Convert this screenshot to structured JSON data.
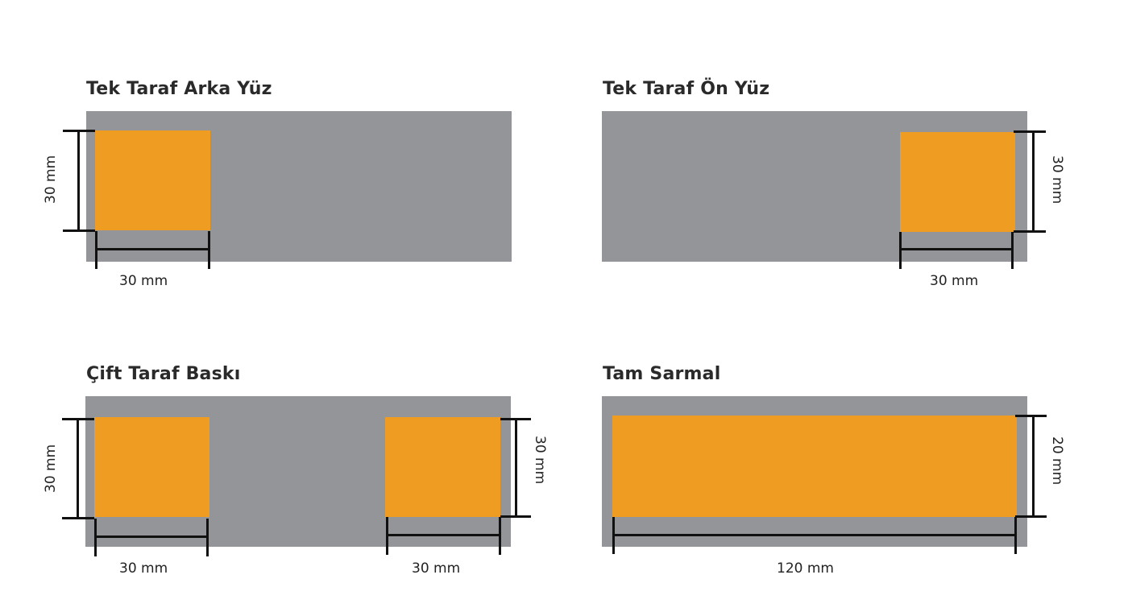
{
  "panels": {
    "back": {
      "title": "Tek Taraf Arka Yüz",
      "width_label": "30 mm",
      "height_label": "30 mm"
    },
    "front": {
      "title": "Tek Taraf Ön Yüz",
      "width_label": "30 mm",
      "height_label": "30 mm"
    },
    "double": {
      "title": "Çift Taraf Baskı",
      "left_width_label": "30 mm",
      "left_height_label": "30 mm",
      "right_width_label": "30 mm",
      "right_height_label": "30 mm"
    },
    "wrap": {
      "title": "Tam Sarmal",
      "width_label": "120 mm",
      "height_label": "20 mm"
    }
  },
  "colors": {
    "band": "#949599",
    "print": "#ee9d22",
    "dimension_line": "#111111"
  }
}
